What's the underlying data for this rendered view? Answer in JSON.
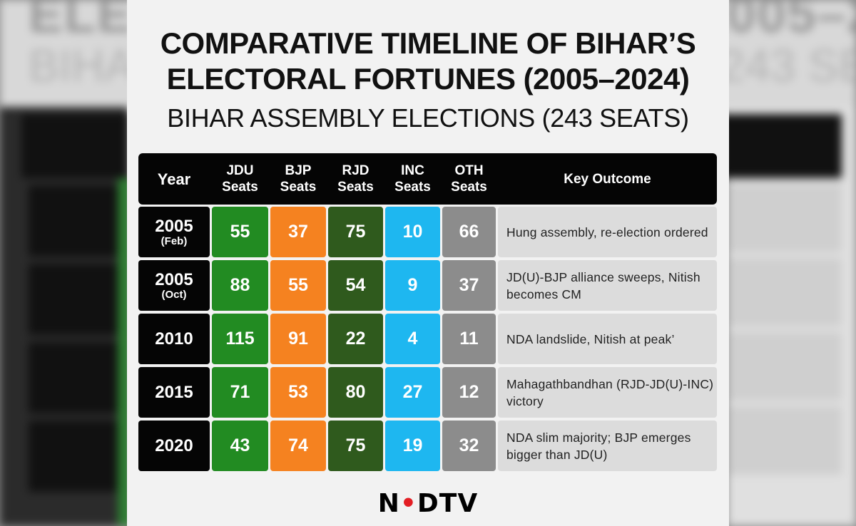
{
  "title": "COMPARATIVE TIMELINE OF BIHAR’S ELECTORAL FORTUNES (2005–2024)",
  "subtitle": "BIHAR ASSEMBLY ELECTIONS (243 SEATS)",
  "headers": {
    "year": "Year",
    "jdu": "JDU\nSeats",
    "bjp": "BJP\nSeats",
    "rjd": "RJD\nSeats",
    "inc": "INC\nSeats",
    "oth": "OTH\nSeats",
    "outcome": "Key Outcome"
  },
  "rows": [
    {
      "year": "2005",
      "year_note": "(Feb)",
      "jdu": "55",
      "bjp": "37",
      "rjd": "75",
      "inc": "10",
      "oth": "66",
      "outcome": "Hung assembly, re-election ordered"
    },
    {
      "year": "2005",
      "year_note": "(Oct)",
      "jdu": "88",
      "bjp": "55",
      "rjd": "54",
      "inc": "9",
      "oth": "37",
      "outcome": "JD(U)-BJP alliance sweeps, Nitish becomes CM"
    },
    {
      "year": "2010",
      "year_note": "",
      "jdu": "115",
      "bjp": "91",
      "rjd": "22",
      "inc": "4",
      "oth": "11",
      "outcome": "NDA landslide, Nitish at peak’"
    },
    {
      "year": "2015",
      "year_note": "",
      "jdu": "71",
      "bjp": "53",
      "rjd": "80",
      "inc": "27",
      "oth": "12",
      "outcome": "Mahagathbandhan (RJD-JD(U)-INC) victory"
    },
    {
      "year": "2020",
      "year_note": "",
      "jdu": "43",
      "bjp": "74",
      "rjd": "75",
      "inc": "19",
      "oth": "32",
      "outcome": "NDA slim majority; BJP emerges bigger than JD(U)"
    }
  ],
  "logo": {
    "left": "N",
    "dot": "•",
    "right": "DTV"
  },
  "colors": {
    "jdu": "#228b22",
    "bjp": "#f58220",
    "rjd": "#2f5a1d",
    "inc": "#1eb7f0",
    "oth": "#8c8c8c",
    "header": "#050505"
  }
}
